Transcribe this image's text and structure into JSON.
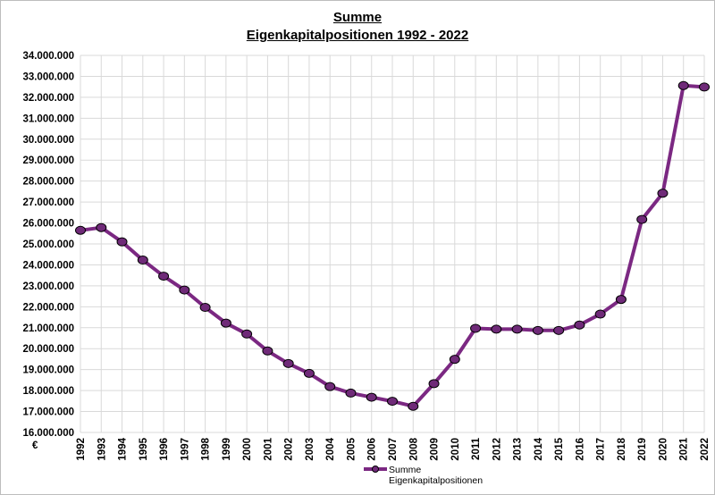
{
  "chart_data": {
    "type": "line",
    "title": "Summe",
    "subtitle": "Eigenkapitalpositionen 1992 - 2022",
    "xlabel": "",
    "ylabel": "€",
    "ylim": [
      16000000,
      34000000
    ],
    "ytick_step": 1000000,
    "ytick_labels": [
      "16.000.000",
      "17.000.000",
      "18.000.000",
      "19.000.000",
      "20.000.000",
      "21.000.000",
      "22.000.000",
      "23.000.000",
      "24.000.000",
      "25.000.000",
      "26.000.000",
      "27.000.000",
      "28.000.000",
      "29.000.000",
      "30.000.000",
      "31.000.000",
      "32.000.000",
      "33.000.000",
      "34.000.000"
    ],
    "categories": [
      "1992",
      "1993",
      "1994",
      "1995",
      "1996",
      "1997",
      "1998",
      "1999",
      "2000",
      "2001",
      "2002",
      "2003",
      "2004",
      "2005",
      "2006",
      "2007",
      "2008",
      "2009",
      "2010",
      "2011",
      "2012",
      "2013",
      "2014",
      "2015",
      "2016",
      "2017",
      "2018",
      "2019",
      "2020",
      "2021",
      "2022"
    ],
    "series": [
      {
        "name": "Summe Eigenkapitalpositionen",
        "legend_lines": [
          "Summe",
          "Eigenkapitalpositionen"
        ],
        "color": "#7b2882",
        "marker_color": "#6f2a78",
        "values": [
          25650000,
          25780000,
          25100000,
          24230000,
          23460000,
          22800000,
          21970000,
          21220000,
          20700000,
          19890000,
          19290000,
          18820000,
          18190000,
          17880000,
          17680000,
          17490000,
          17250000,
          18330000,
          19490000,
          20970000,
          20930000,
          20930000,
          20870000,
          20870000,
          21130000,
          21650000,
          22350000,
          26170000,
          27420000,
          32560000,
          32490000
        ]
      }
    ],
    "grid": true,
    "legend": "bottom-center"
  }
}
